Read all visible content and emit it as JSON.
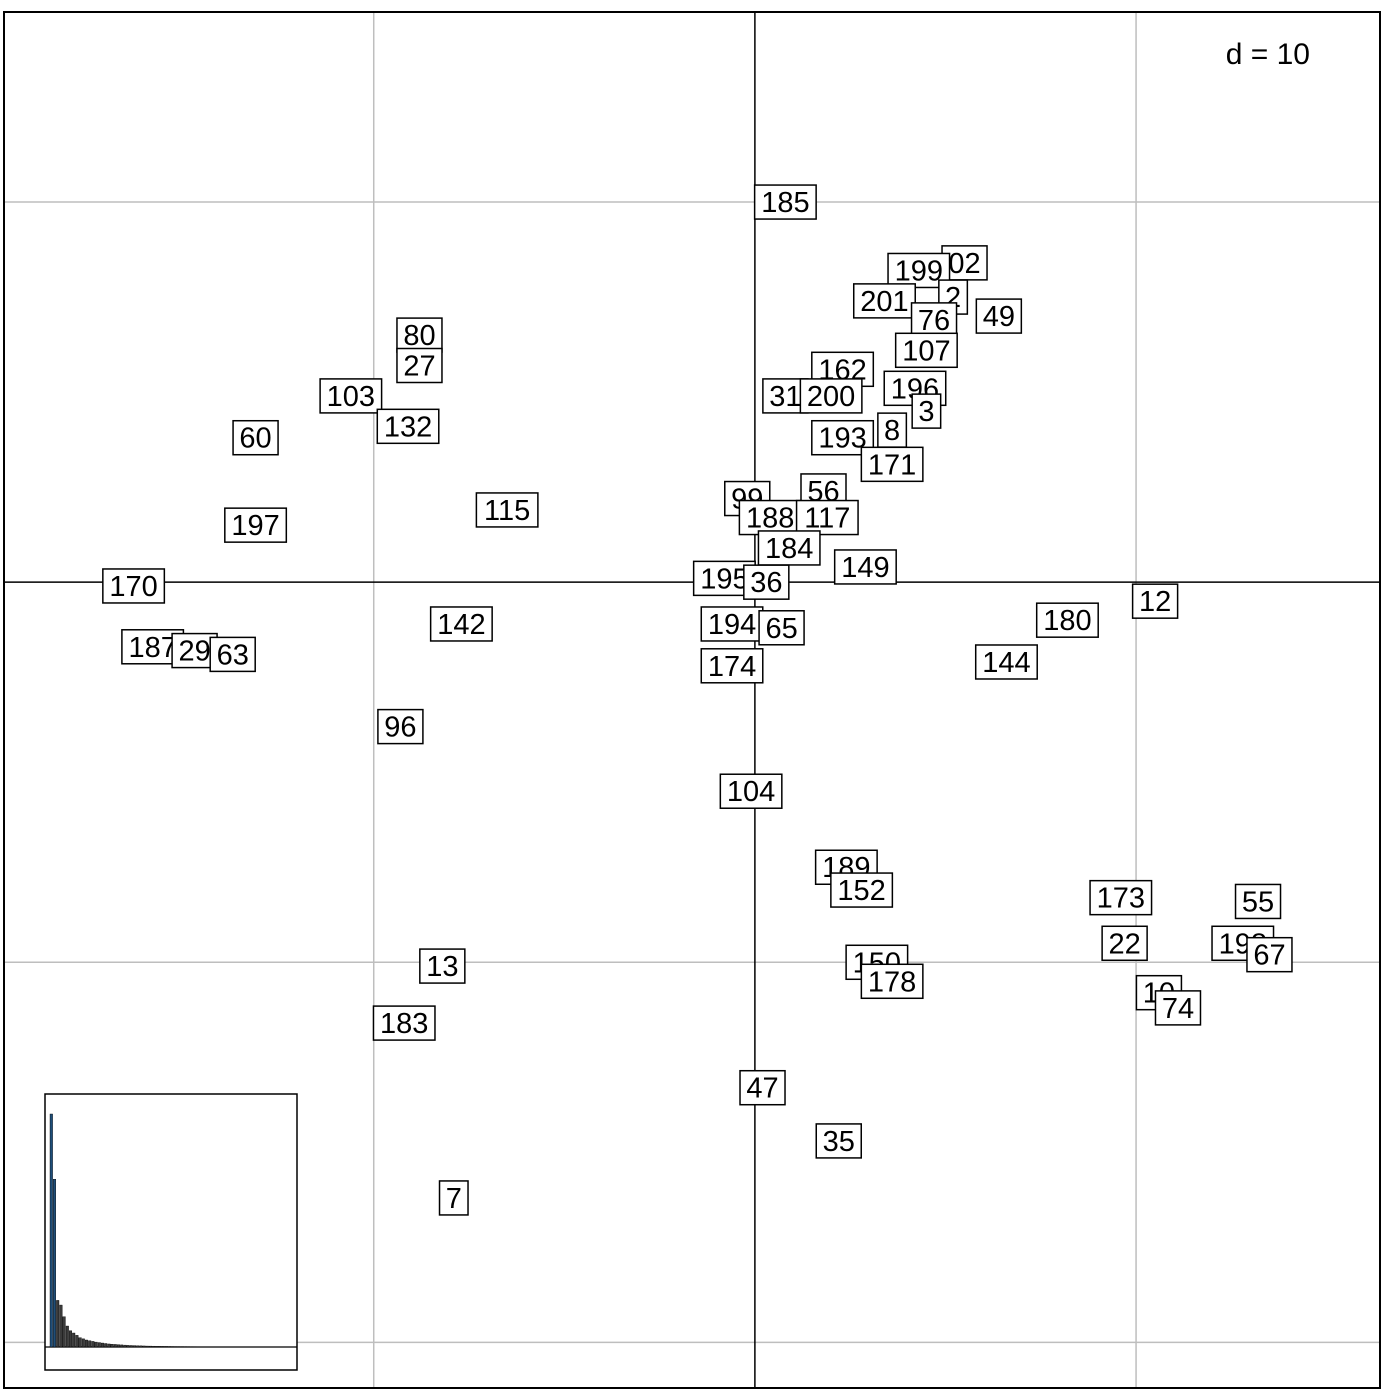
{
  "chart_data": {
    "type": "scatter",
    "title": "",
    "xlabel": "",
    "ylabel": "",
    "scale_label": "d = 10",
    "grid": true,
    "grid_step": 10,
    "xlim": [
      -19.7,
      16.4
    ],
    "ylim": [
      -21.2,
      15.0
    ],
    "points": [
      {
        "label": "185",
        "x": 0.8,
        "y": 10.0
      },
      {
        "label": "02",
        "x": 5.5,
        "y": 8.4
      },
      {
        "label": "199",
        "x": 4.3,
        "y": 8.2
      },
      {
        "label": "201",
        "x": 3.4,
        "y": 7.4
      },
      {
        "label": "2",
        "x": 5.2,
        "y": 7.5
      },
      {
        "label": "76",
        "x": 4.7,
        "y": 6.9
      },
      {
        "label": "49",
        "x": 6.4,
        "y": 7.0
      },
      {
        "label": "107",
        "x": 4.5,
        "y": 6.1
      },
      {
        "label": "162",
        "x": 2.3,
        "y": 5.6
      },
      {
        "label": "196",
        "x": 4.2,
        "y": 5.1
      },
      {
        "label": "31",
        "x": 0.8,
        "y": 4.9
      },
      {
        "label": "200",
        "x": 2.0,
        "y": 4.9
      },
      {
        "label": "3",
        "x": 4.5,
        "y": 4.5
      },
      {
        "label": "193",
        "x": 2.3,
        "y": 3.8
      },
      {
        "label": "8",
        "x": 3.6,
        "y": 4.0
      },
      {
        "label": "171",
        "x": 3.6,
        "y": 3.1
      },
      {
        "label": "80",
        "x": -8.8,
        "y": 6.5
      },
      {
        "label": "27",
        "x": -8.8,
        "y": 5.7
      },
      {
        "label": "103",
        "x": -10.6,
        "y": 4.9
      },
      {
        "label": "132",
        "x": -9.1,
        "y": 4.1
      },
      {
        "label": "60",
        "x": -13.1,
        "y": 3.8
      },
      {
        "label": "115",
        "x": -6.5,
        "y": 1.9
      },
      {
        "label": "197",
        "x": -13.1,
        "y": 1.5
      },
      {
        "label": "170",
        "x": -16.3,
        "y": -0.1
      },
      {
        "label": "187",
        "x": -15.8,
        "y": -1.7
      },
      {
        "label": "29",
        "x": -14.7,
        "y": -1.8
      },
      {
        "label": "63",
        "x": -13.7,
        "y": -1.9
      },
      {
        "label": "142",
        "x": -7.7,
        "y": -1.1
      },
      {
        "label": "96",
        "x": -9.3,
        "y": -3.8
      },
      {
        "label": "99",
        "x": -0.2,
        "y": 2.2
      },
      {
        "label": "56",
        "x": 1.8,
        "y": 2.4
      },
      {
        "label": "188",
        "x": 0.4,
        "y": 1.7
      },
      {
        "label": "117",
        "x": 1.9,
        "y": 1.7
      },
      {
        "label": "184",
        "x": 0.9,
        "y": 0.9
      },
      {
        "label": "149",
        "x": 2.9,
        "y": 0.4
      },
      {
        "label": "195",
        "x": -0.8,
        "y": 0.1
      },
      {
        "label": "36",
        "x": 0.3,
        "y": 0.0
      },
      {
        "label": "194",
        "x": -0.6,
        "y": -1.1
      },
      {
        "label": "65",
        "x": 0.7,
        "y": -1.2
      },
      {
        "label": "174",
        "x": -0.6,
        "y": -2.2
      },
      {
        "label": "180",
        "x": 8.2,
        "y": -1.0
      },
      {
        "label": "12",
        "x": 10.5,
        "y": -0.5
      },
      {
        "label": "144",
        "x": 6.6,
        "y": -2.1
      },
      {
        "label": "104",
        "x": -0.1,
        "y": -5.5
      },
      {
        "label": "189",
        "x": 2.4,
        "y": -7.5
      },
      {
        "label": "152",
        "x": 2.8,
        "y": -8.1
      },
      {
        "label": "173",
        "x": 9.6,
        "y": -8.3
      },
      {
        "label": "55",
        "x": 13.2,
        "y": -8.4
      },
      {
        "label": "22",
        "x": 9.7,
        "y": -9.5
      },
      {
        "label": "198",
        "x": 12.8,
        "y": -9.5
      },
      {
        "label": "67",
        "x": 13.5,
        "y": -9.8
      },
      {
        "label": "150",
        "x": 3.2,
        "y": -10.0
      },
      {
        "label": "178",
        "x": 3.6,
        "y": -10.5
      },
      {
        "label": "10",
        "x": 10.6,
        "y": -10.8
      },
      {
        "label": "74",
        "x": 11.1,
        "y": -11.2
      },
      {
        "label": "13",
        "x": -8.2,
        "y": -10.1
      },
      {
        "label": "183",
        "x": -9.2,
        "y": -11.6
      },
      {
        "label": "47",
        "x": 0.2,
        "y": -13.3
      },
      {
        "label": "35",
        "x": 2.2,
        "y": -14.7
      },
      {
        "label": "7",
        "x": -7.9,
        "y": -16.2
      }
    ],
    "eigenvalues": [
      100,
      72,
      20,
      18,
      13,
      9,
      7,
      6,
      5,
      4,
      3.5,
      3,
      2.7,
      2.4,
      2.1,
      1.9,
      1.7,
      1.5,
      1.3,
      1.2,
      1.1,
      1.0,
      0.9,
      0.8,
      0.7,
      0.65,
      0.6,
      0.55,
      0.5,
      0.45,
      0.4,
      0.38,
      0.35,
      0.32,
      0.3,
      0.28,
      0.26,
      0.24,
      0.22,
      0.2,
      0.19,
      0.18,
      0.17,
      0.16,
      0.15,
      0.14,
      0.13,
      0.12,
      0.11,
      0.1
    ]
  }
}
